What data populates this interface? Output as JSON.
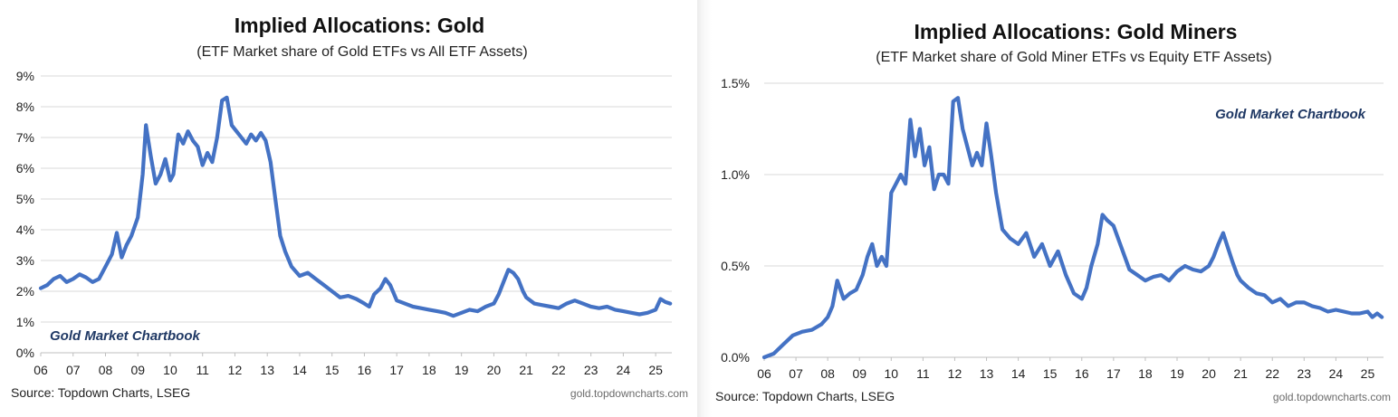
{
  "chart_data": [
    {
      "type": "line",
      "title": "Implied Allocations: Gold",
      "subtitle": "(ETF Market share of Gold ETFs vs All ETF Assets)",
      "watermark": "Gold Market Chartbook",
      "source": "Source: Topdown Charts, LSEG",
      "site": "gold.topdowncharts.com",
      "xlabel": "",
      "ylabel": "",
      "x_ticks": [
        "06",
        "07",
        "08",
        "09",
        "10",
        "11",
        "12",
        "13",
        "14",
        "15",
        "16",
        "17",
        "18",
        "19",
        "20",
        "21",
        "22",
        "23",
        "24",
        "25"
      ],
      "y_ticks": [
        "0%",
        "1%",
        "2%",
        "3%",
        "4%",
        "5%",
        "6%",
        "7%",
        "8%",
        "9%"
      ],
      "xlim": [
        2006,
        2025.5
      ],
      "ylim": [
        0,
        9
      ],
      "grid": true,
      "legend": "none",
      "line_color": "#4472c4",
      "series": [
        {
          "x": [
            2006.0,
            2006.2,
            2006.4,
            2006.6,
            2006.8,
            2007.0,
            2007.2,
            2007.4,
            2007.6,
            2007.8,
            2008.0,
            2008.2,
            2008.35,
            2008.5,
            2008.65,
            2008.8,
            2009.0,
            2009.15,
            2009.25,
            2009.4,
            2009.55,
            2009.7,
            2009.85,
            2010.0,
            2010.1,
            2010.25,
            2010.4,
            2010.55,
            2010.7,
            2010.85,
            2011.0,
            2011.15,
            2011.3,
            2011.45,
            2011.6,
            2011.75,
            2011.9,
            2012.05,
            2012.2,
            2012.35,
            2012.5,
            2012.65,
            2012.8,
            2012.95,
            2013.1,
            2013.25,
            2013.4,
            2013.55,
            2013.75,
            2014.0,
            2014.25,
            2014.5,
            2014.75,
            2015.0,
            2015.25,
            2015.5,
            2015.75,
            2016.0,
            2016.15,
            2016.3,
            2016.5,
            2016.65,
            2016.8,
            2017.0,
            2017.25,
            2017.5,
            2017.75,
            2018.0,
            2018.25,
            2018.5,
            2018.75,
            2019.0,
            2019.25,
            2019.5,
            2019.75,
            2020.0,
            2020.15,
            2020.3,
            2020.45,
            2020.6,
            2020.75,
            2020.9,
            2021.0,
            2021.25,
            2021.5,
            2021.75,
            2022.0,
            2022.25,
            2022.5,
            2022.75,
            2023.0,
            2023.25,
            2023.5,
            2023.75,
            2024.0,
            2024.25,
            2024.5,
            2024.75,
            2025.0,
            2025.15,
            2025.3,
            2025.45
          ],
          "y": [
            2.1,
            2.2,
            2.4,
            2.5,
            2.3,
            2.4,
            2.55,
            2.45,
            2.3,
            2.4,
            2.8,
            3.2,
            3.9,
            3.1,
            3.5,
            3.8,
            4.4,
            5.8,
            7.4,
            6.4,
            5.5,
            5.8,
            6.3,
            5.6,
            5.8,
            7.1,
            6.8,
            7.2,
            6.9,
            6.7,
            6.1,
            6.5,
            6.2,
            7.0,
            8.2,
            8.3,
            7.4,
            7.2,
            7.0,
            6.8,
            7.1,
            6.9,
            7.15,
            6.9,
            6.2,
            5.0,
            3.8,
            3.3,
            2.8,
            2.5,
            2.6,
            2.4,
            2.2,
            2.0,
            1.8,
            1.85,
            1.75,
            1.6,
            1.5,
            1.9,
            2.1,
            2.4,
            2.2,
            1.7,
            1.6,
            1.5,
            1.45,
            1.4,
            1.35,
            1.3,
            1.2,
            1.3,
            1.4,
            1.35,
            1.5,
            1.6,
            1.9,
            2.3,
            2.7,
            2.6,
            2.4,
            2.0,
            1.8,
            1.6,
            1.55,
            1.5,
            1.45,
            1.6,
            1.7,
            1.6,
            1.5,
            1.45,
            1.5,
            1.4,
            1.35,
            1.3,
            1.25,
            1.3,
            1.4,
            1.75,
            1.65,
            1.6
          ]
        }
      ]
    },
    {
      "type": "line",
      "title": "Implied Allocations: Gold Miners",
      "subtitle": "(ETF Market share of Gold Miner ETFs vs Equity ETF Assets)",
      "watermark": "Gold Market Chartbook",
      "source": "Source: Topdown Charts, LSEG",
      "site": "gold.topdowncharts.com",
      "xlabel": "",
      "ylabel": "",
      "x_ticks": [
        "06",
        "07",
        "08",
        "09",
        "10",
        "11",
        "12",
        "13",
        "14",
        "15",
        "16",
        "17",
        "18",
        "19",
        "20",
        "21",
        "22",
        "23",
        "24",
        "25"
      ],
      "y_ticks": [
        "0.0%",
        "0.5%",
        "1.0%",
        "1.5%"
      ],
      "xlim": [
        2006,
        2025.5
      ],
      "ylim": [
        0,
        1.5
      ],
      "grid": true,
      "legend": "none",
      "line_color": "#4472c4",
      "series": [
        {
          "x": [
            2006.0,
            2006.3,
            2006.6,
            2006.9,
            2007.2,
            2007.5,
            2007.8,
            2008.0,
            2008.15,
            2008.3,
            2008.5,
            2008.7,
            2008.9,
            2009.1,
            2009.25,
            2009.4,
            2009.55,
            2009.7,
            2009.85,
            2010.0,
            2010.15,
            2010.3,
            2010.45,
            2010.6,
            2010.75,
            2010.9,
            2011.05,
            2011.2,
            2011.35,
            2011.5,
            2011.65,
            2011.8,
            2011.95,
            2012.1,
            2012.25,
            2012.4,
            2012.55,
            2012.7,
            2012.85,
            2013.0,
            2013.15,
            2013.3,
            2013.5,
            2013.75,
            2014.0,
            2014.25,
            2014.5,
            2014.75,
            2015.0,
            2015.25,
            2015.5,
            2015.75,
            2016.0,
            2016.15,
            2016.3,
            2016.5,
            2016.65,
            2016.8,
            2017.0,
            2017.25,
            2017.5,
            2017.75,
            2018.0,
            2018.25,
            2018.5,
            2018.75,
            2019.0,
            2019.25,
            2019.5,
            2019.75,
            2020.0,
            2020.15,
            2020.3,
            2020.45,
            2020.6,
            2020.75,
            2020.9,
            2021.0,
            2021.25,
            2021.5,
            2021.75,
            2022.0,
            2022.25,
            2022.5,
            2022.75,
            2023.0,
            2023.25,
            2023.5,
            2023.75,
            2024.0,
            2024.25,
            2024.5,
            2024.75,
            2025.0,
            2025.15,
            2025.3,
            2025.45
          ],
          "y": [
            0.0,
            0.02,
            0.07,
            0.12,
            0.14,
            0.15,
            0.18,
            0.22,
            0.28,
            0.42,
            0.32,
            0.35,
            0.37,
            0.45,
            0.55,
            0.62,
            0.5,
            0.55,
            0.5,
            0.9,
            0.95,
            1.0,
            0.95,
            1.3,
            1.1,
            1.25,
            1.05,
            1.15,
            0.92,
            1.0,
            1.0,
            0.95,
            1.4,
            1.42,
            1.25,
            1.15,
            1.05,
            1.12,
            1.05,
            1.28,
            1.1,
            0.9,
            0.7,
            0.65,
            0.62,
            0.68,
            0.55,
            0.62,
            0.5,
            0.58,
            0.45,
            0.35,
            0.32,
            0.38,
            0.5,
            0.62,
            0.78,
            0.75,
            0.72,
            0.6,
            0.48,
            0.45,
            0.42,
            0.44,
            0.45,
            0.42,
            0.47,
            0.5,
            0.48,
            0.47,
            0.5,
            0.55,
            0.62,
            0.68,
            0.6,
            0.52,
            0.45,
            0.42,
            0.38,
            0.35,
            0.34,
            0.3,
            0.32,
            0.28,
            0.3,
            0.3,
            0.28,
            0.27,
            0.25,
            0.26,
            0.25,
            0.24,
            0.24,
            0.25,
            0.22,
            0.24,
            0.22
          ]
        }
      ]
    }
  ]
}
